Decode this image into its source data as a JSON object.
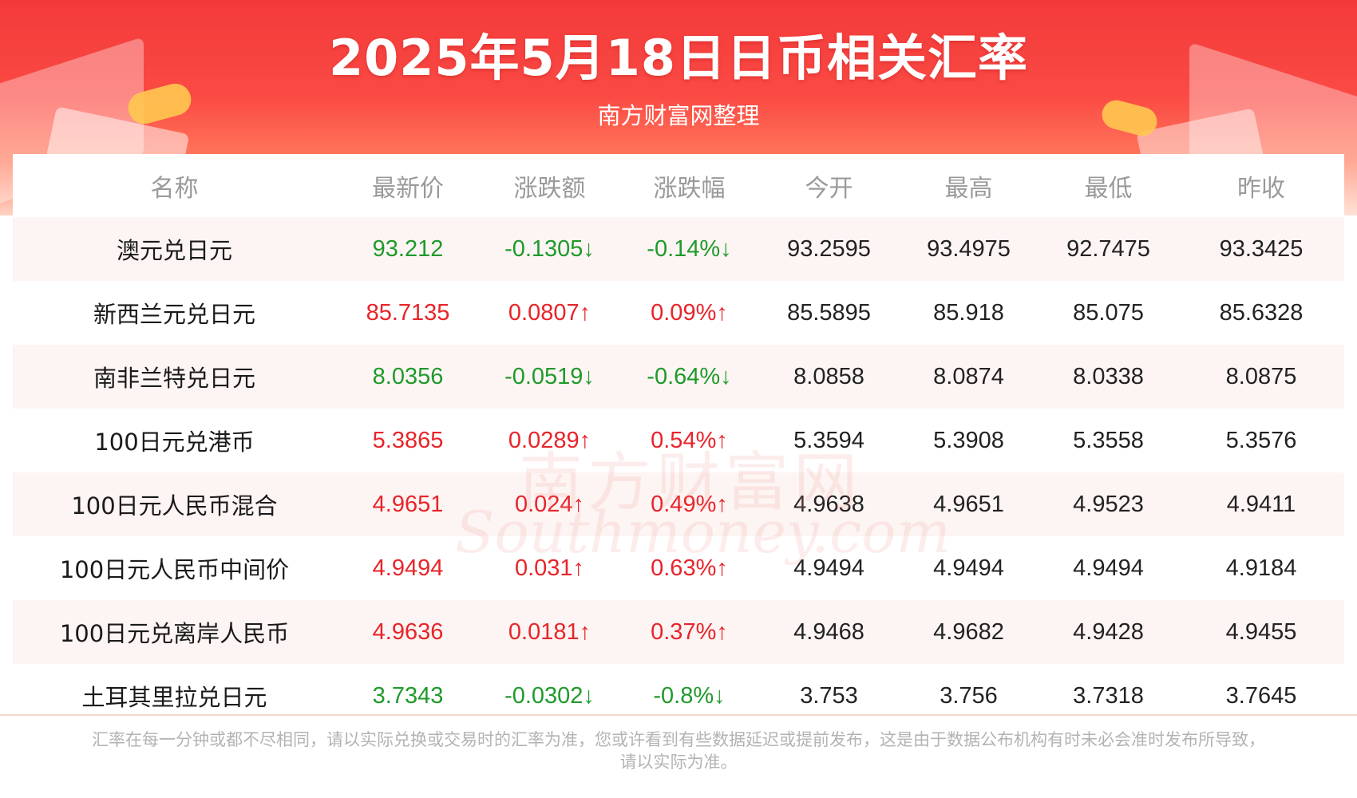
{
  "header": {
    "title": "2025年5月18日日币相关汇率",
    "subtitle": "南方财富网整理"
  },
  "table": {
    "columns": [
      "名称",
      "最新价",
      "涨跌额",
      "涨跌幅",
      "今开",
      "最高",
      "最低",
      "昨收"
    ],
    "rows": [
      {
        "name": "澳元兑日元",
        "latest": "93.212",
        "change": "-0.1305↓",
        "pct": "-0.14%↓",
        "open": "93.2595",
        "high": "93.4975",
        "low": "92.7475",
        "prev": "93.3425",
        "dir": "down"
      },
      {
        "name": "新西兰元兑日元",
        "latest": "85.7135",
        "change": "0.0807↑",
        "pct": "0.09%↑",
        "open": "85.5895",
        "high": "85.918",
        "low": "85.075",
        "prev": "85.6328",
        "dir": "up"
      },
      {
        "name": "南非兰特兑日元",
        "latest": "8.0356",
        "change": "-0.0519↓",
        "pct": "-0.64%↓",
        "open": "8.0858",
        "high": "8.0874",
        "low": "8.0338",
        "prev": "8.0875",
        "dir": "down"
      },
      {
        "name": "100日元兑港币",
        "latest": "5.3865",
        "change": "0.0289↑",
        "pct": "0.54%↑",
        "open": "5.3594",
        "high": "5.3908",
        "low": "5.3558",
        "prev": "5.3576",
        "dir": "up"
      },
      {
        "name": "100日元人民币混合",
        "latest": "4.9651",
        "change": "0.024↑",
        "pct": "0.49%↑",
        "open": "4.9638",
        "high": "4.9651",
        "low": "4.9523",
        "prev": "4.9411",
        "dir": "up"
      },
      {
        "name": "100日元人民币中间价",
        "latest": "4.9494",
        "change": "0.031↑",
        "pct": "0.63%↑",
        "open": "4.9494",
        "high": "4.9494",
        "low": "4.9494",
        "prev": "4.9184",
        "dir": "up"
      },
      {
        "name": "100日元兑离岸人民币",
        "latest": "4.9636",
        "change": "0.0181↑",
        "pct": "0.37%↑",
        "open": "4.9468",
        "high": "4.9682",
        "low": "4.9428",
        "prev": "4.9455",
        "dir": "up"
      },
      {
        "name": "土耳其里拉兑日元",
        "latest": "3.7343",
        "change": "-0.0302↓",
        "pct": "-0.8%↓",
        "open": "3.753",
        "high": "3.756",
        "low": "3.7318",
        "prev": "3.7645",
        "dir": "down"
      }
    ]
  },
  "watermark": {
    "cn": "南方财富网",
    "en": "Southmoney.com"
  },
  "footer": {
    "line1": "汇率在每一分钟或都不尽相同，请以实际兑换或交易时的汇率为准，您或许看到有些数据延迟或提前发布，这是由于数据公布机构有时未必会准时发布所导致，",
    "line2": "请以实际为准。"
  },
  "colors": {
    "up": "#e8242a",
    "down": "#1f9a2b",
    "banner": "#f23a3a"
  }
}
